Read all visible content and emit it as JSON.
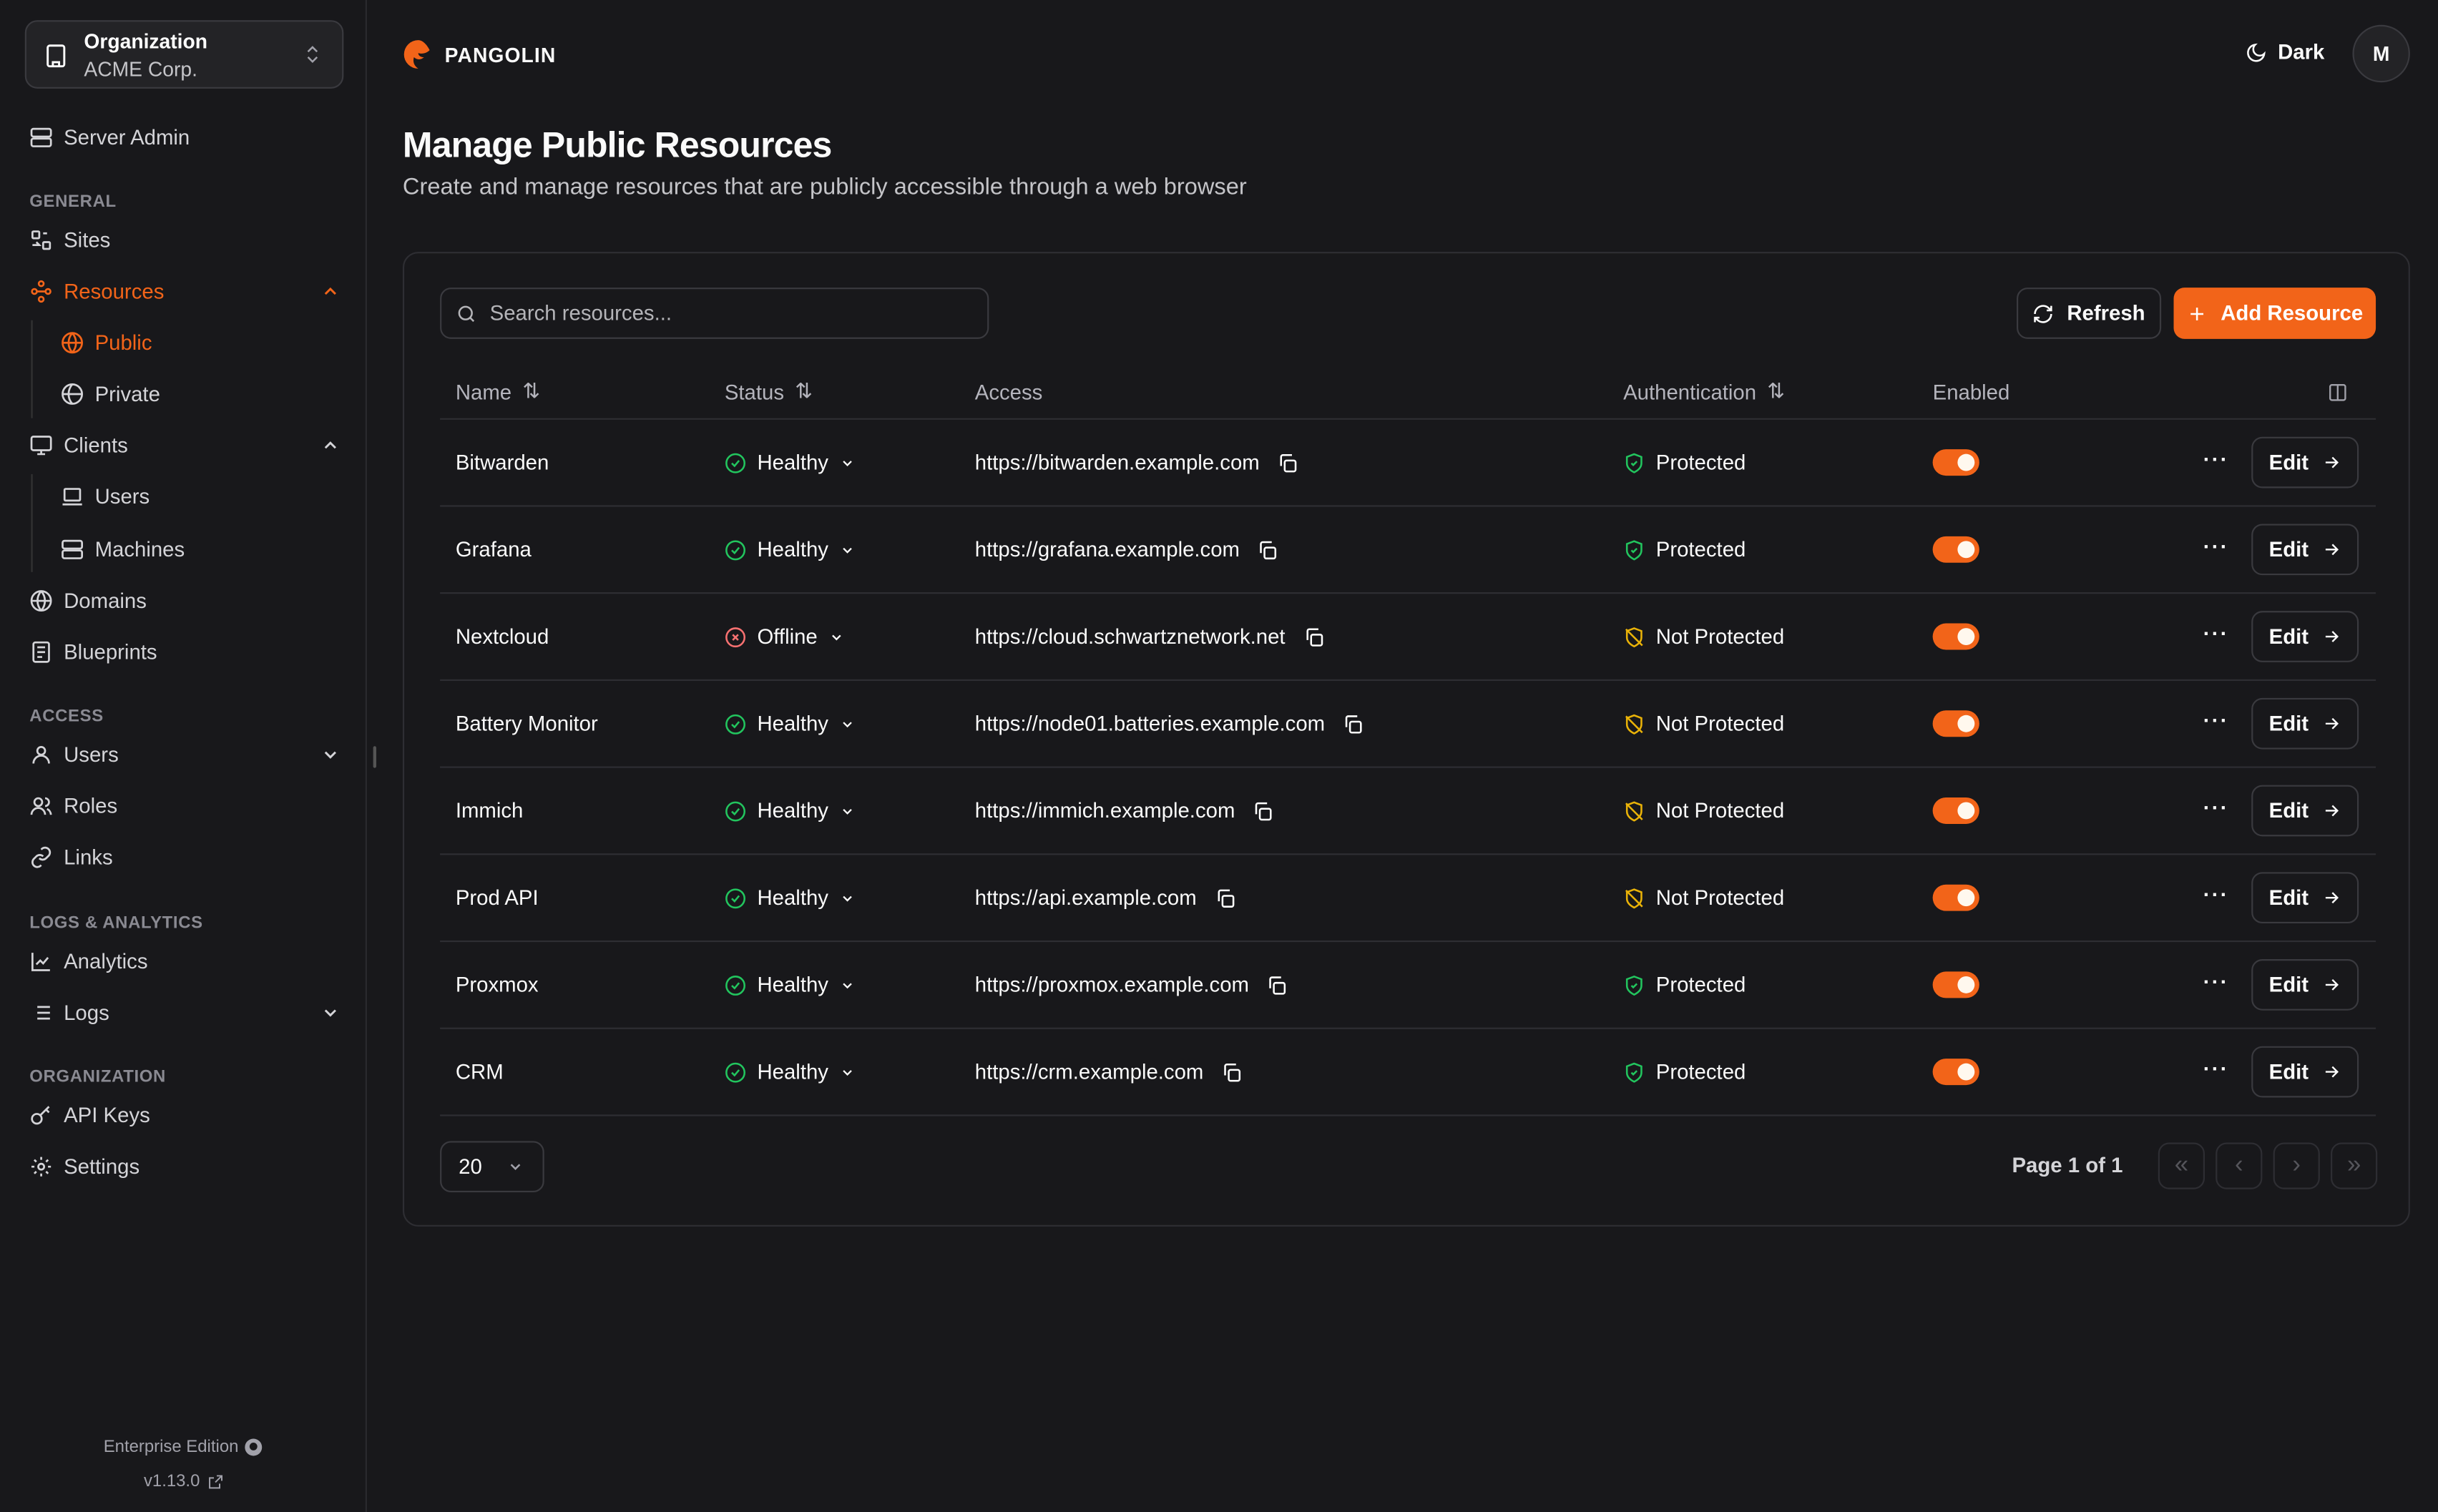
{
  "colors": {
    "accent": "#f26419",
    "healthy": "#22c55e",
    "offline": "#f87171",
    "warning": "#eab308",
    "background": "#18181b"
  },
  "sidebar": {
    "org": {
      "label": "Organization",
      "name": "ACME Corp."
    },
    "server_admin": "Server Admin",
    "sections": {
      "general": "GENERAL",
      "access": "ACCESS",
      "logs": "LOGS & ANALYTICS",
      "organization": "ORGANIZATION"
    },
    "items": {
      "sites": "Sites",
      "resources": "Resources",
      "public": "Public",
      "private": "Private",
      "clients": "Clients",
      "users": "Users",
      "machines": "Machines",
      "domains": "Domains",
      "blueprints": "Blueprints",
      "access_users": "Users",
      "roles": "Roles",
      "links": "Links",
      "analytics": "Analytics",
      "logs": "Logs",
      "api_keys": "API Keys",
      "settings": "Settings"
    },
    "footer": {
      "edition": "Enterprise Edition",
      "version": "v1.13.0"
    }
  },
  "header": {
    "brand": "PANGOLIN",
    "theme": "Dark",
    "avatar": "M"
  },
  "page": {
    "title": "Manage Public Resources",
    "subtitle": "Create and manage resources that are publicly accessible through a web browser"
  },
  "toolbar": {
    "search_placeholder": "Search resources...",
    "refresh": "Refresh",
    "add": "Add Resource"
  },
  "table": {
    "headers": {
      "name": "Name",
      "status": "Status",
      "access": "Access",
      "auth": "Authentication",
      "enabled": "Enabled"
    },
    "edit_label": "Edit",
    "rows": [
      {
        "name": "Bitwarden",
        "status": "Healthy",
        "access": "https://bitwarden.example.com",
        "auth": "Protected",
        "enabled": true
      },
      {
        "name": "Grafana",
        "status": "Healthy",
        "access": "https://grafana.example.com",
        "auth": "Protected",
        "enabled": true
      },
      {
        "name": "Nextcloud",
        "status": "Offline",
        "access": "https://cloud.schwartznetwork.net",
        "auth": "Not Protected",
        "enabled": true
      },
      {
        "name": "Battery Monitor",
        "status": "Healthy",
        "access": "https://node01.batteries.example.com",
        "auth": "Not Protected",
        "enabled": true
      },
      {
        "name": "Immich",
        "status": "Healthy",
        "access": "https://immich.example.com",
        "auth": "Not Protected",
        "enabled": true
      },
      {
        "name": "Prod API",
        "status": "Healthy",
        "access": "https://api.example.com",
        "auth": "Not Protected",
        "enabled": true
      },
      {
        "name": "Proxmox",
        "status": "Healthy",
        "access": "https://proxmox.example.com",
        "auth": "Protected",
        "enabled": true
      },
      {
        "name": "CRM",
        "status": "Healthy",
        "access": "https://crm.example.com",
        "auth": "Protected",
        "enabled": true
      }
    ]
  },
  "pagination": {
    "page_size": "20",
    "page_info": "Page 1 of 1"
  }
}
